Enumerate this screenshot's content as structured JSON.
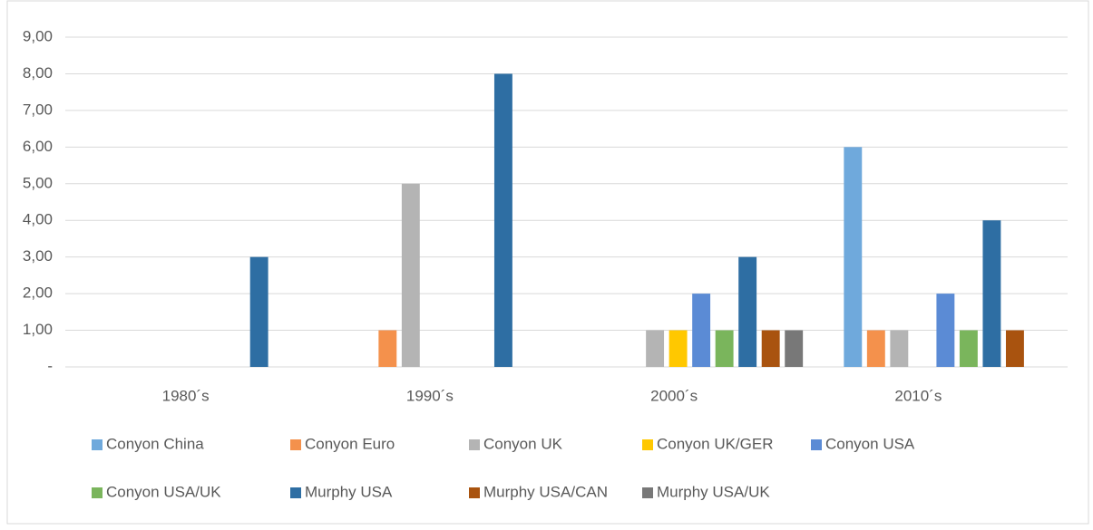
{
  "chart_data": {
    "type": "bar",
    "categories": [
      "1980´s",
      "1990´s",
      "2000´s",
      "2010´s"
    ],
    "series": [
      {
        "name": "Conyon China",
        "color": "#6fa9dc",
        "values": [
          null,
          null,
          null,
          6
        ]
      },
      {
        "name": "Conyon Euro",
        "color": "#f4914c",
        "values": [
          null,
          1,
          null,
          1
        ]
      },
      {
        "name": "Conyon UK",
        "color": "#b4b4b4",
        "values": [
          null,
          5,
          1,
          1
        ]
      },
      {
        "name": "Conyon UK/GER",
        "color": "#ffc800",
        "values": [
          null,
          null,
          1,
          null
        ]
      },
      {
        "name": "Conyon USA",
        "color": "#5b8bd5",
        "values": [
          null,
          null,
          2,
          2
        ]
      },
      {
        "name": "Conyon USA/UK",
        "color": "#7ab55c",
        "values": [
          null,
          null,
          1,
          1
        ]
      },
      {
        "name": "Murphy USA",
        "color": "#2e6ea3",
        "values": [
          3,
          8,
          3,
          4
        ]
      },
      {
        "name": "Murphy USA/CAN",
        "color": "#a9530f",
        "values": [
          null,
          null,
          1,
          1
        ]
      },
      {
        "name": "Murphy USA/UK",
        "color": "#787878",
        "values": [
          null,
          null,
          1,
          null
        ]
      }
    ],
    "ylim": [
      0,
      9
    ],
    "yticks": [
      {
        "value": 0,
        "label": "-"
      },
      {
        "value": 1,
        "label": "1,00"
      },
      {
        "value": 2,
        "label": "2,00"
      },
      {
        "value": 3,
        "label": "3,00"
      },
      {
        "value": 4,
        "label": "4,00"
      },
      {
        "value": 5,
        "label": "5,00"
      },
      {
        "value": 6,
        "label": "6,00"
      },
      {
        "value": 7,
        "label": "7,00"
      },
      {
        "value": 8,
        "label": "8,00"
      },
      {
        "value": 9,
        "label": "9,00"
      }
    ],
    "grid": true
  }
}
